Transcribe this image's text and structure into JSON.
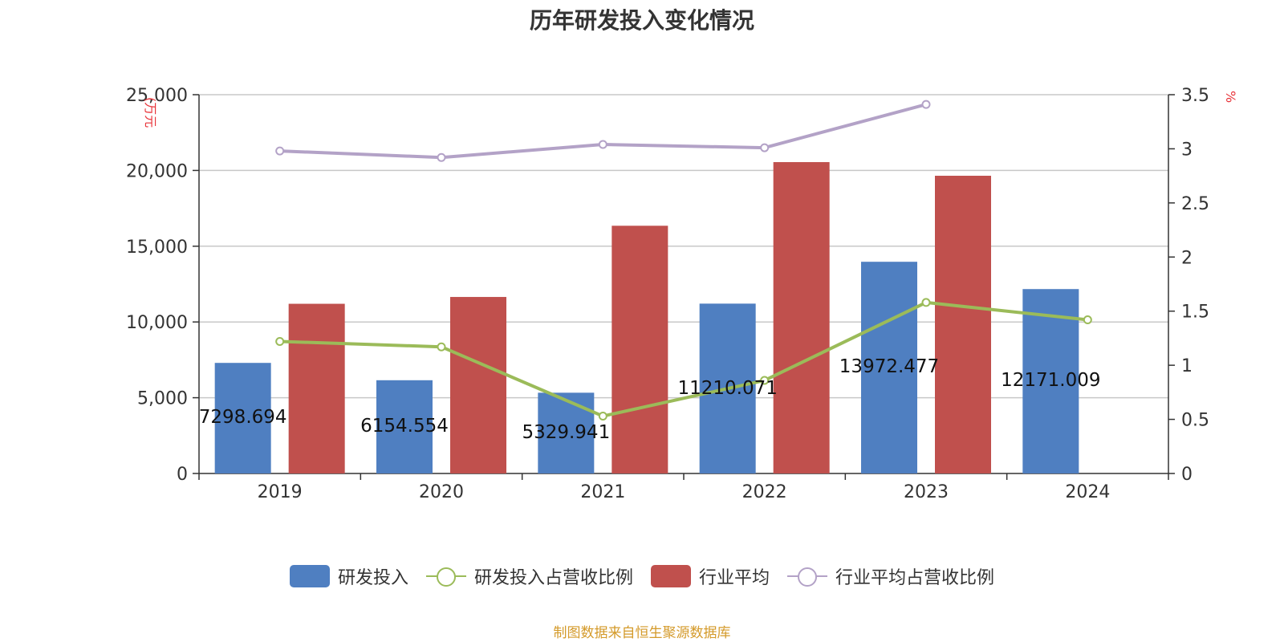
{
  "title": "历年研发投入变化情况",
  "source": "制图数据来自恒生聚源数据库",
  "colors": {
    "rd": "#4f7fc1",
    "industry": "#c0504d",
    "rd_ratio": "#9bbb59",
    "industry_ratio": "#b3a2c7",
    "axis_label_red": "#e8343a",
    "grid": "#c8c8c8"
  },
  "legend": [
    {
      "label": "研发投入",
      "kind": "bar",
      "color": "#4f7fc1"
    },
    {
      "label": "研发投入占营收比例",
      "kind": "line",
      "color": "#9bbb59"
    },
    {
      "label": "行业平均",
      "kind": "bar",
      "color": "#c0504d"
    },
    {
      "label": "行业平均占营收比例",
      "kind": "line",
      "color": "#b3a2c7"
    }
  ],
  "chart_data": {
    "type": "bar",
    "title": "历年研发投入变化情况",
    "categories": [
      "2019",
      "2020",
      "2021",
      "2022",
      "2023",
      "2024"
    ],
    "ylabel_left": "(万元",
    "ylabel_right": "%",
    "ylim_left": [
      0,
      25000
    ],
    "yticks_left": [
      "0",
      "5,000",
      "10,000",
      "15,000",
      "20,000",
      "25,000"
    ],
    "ylim_right": [
      0,
      3.5
    ],
    "yticks_right": [
      "0",
      "0.5",
      "1",
      "1.5",
      "2",
      "2.5",
      "3",
      "3.5"
    ],
    "grid": true,
    "legend_position": "bottom",
    "series": [
      {
        "name": "研发投入",
        "type": "bar",
        "axis": "left",
        "values": [
          7298.694,
          6154.554,
          5329.941,
          11210.071,
          13972.477,
          12171.009
        ],
        "labels": [
          "7298.694",
          "6154.554",
          "5329.941",
          "11210.071",
          "13972.477",
          "12171.009"
        ]
      },
      {
        "name": "行业平均",
        "type": "bar",
        "axis": "left",
        "values": [
          11200,
          11650,
          16350,
          20550,
          19650,
          null
        ]
      },
      {
        "name": "研发投入占营收比例",
        "type": "line",
        "axis": "right",
        "values": [
          1.22,
          1.17,
          0.53,
          0.86,
          1.58,
          1.42
        ]
      },
      {
        "name": "行业平均占营收比例",
        "type": "line",
        "axis": "right",
        "values": [
          2.98,
          2.92,
          3.04,
          3.01,
          3.41,
          null
        ]
      }
    ]
  }
}
